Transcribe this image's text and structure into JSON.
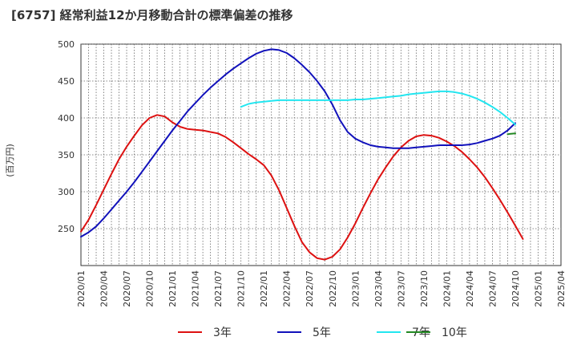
{
  "chart_data": {
    "type": "line",
    "title": "[6757]  経常利益12か月移動合計の標準偏差の推移",
    "ylabel": "(百万円)",
    "xlabel": "",
    "ylim": [
      200,
      500
    ],
    "yticks": [
      250,
      300,
      350,
      400,
      450,
      500
    ],
    "xrange": [
      "2020-01",
      "2025-04"
    ],
    "xticks": [
      "2020/01",
      "2020/04",
      "2020/07",
      "2020/10",
      "2021/01",
      "2021/04",
      "2021/07",
      "2021/10",
      "2022/01",
      "2022/04",
      "2022/07",
      "2022/10",
      "2023/01",
      "2023/04",
      "2023/07",
      "2023/10",
      "2024/01",
      "2024/04",
      "2024/07",
      "2024/10",
      "2025/01",
      "2025/04"
    ],
    "grid": true,
    "legend_position": "bottom",
    "series": [
      {
        "name": "3年",
        "color": "#dd1111",
        "points": [
          [
            "2020-01",
            246
          ],
          [
            "2020-02",
            262
          ],
          [
            "2020-03",
            282
          ],
          [
            "2020-04",
            303
          ],
          [
            "2020-05",
            324
          ],
          [
            "2020-06",
            344
          ],
          [
            "2020-07",
            361
          ],
          [
            "2020-08",
            376
          ],
          [
            "2020-09",
            390
          ],
          [
            "2020-10",
            400
          ],
          [
            "2020-11",
            404
          ],
          [
            "2020-12",
            402
          ],
          [
            "2021-01",
            394
          ],
          [
            "2021-02",
            388
          ],
          [
            "2021-03",
            385
          ],
          [
            "2021-04",
            384
          ],
          [
            "2021-05",
            383
          ],
          [
            "2021-06",
            381
          ],
          [
            "2021-07",
            379
          ],
          [
            "2021-08",
            374
          ],
          [
            "2021-09",
            367
          ],
          [
            "2021-10",
            359
          ],
          [
            "2021-11",
            351
          ],
          [
            "2021-12",
            344
          ],
          [
            "2022-01",
            336
          ],
          [
            "2022-02",
            322
          ],
          [
            "2022-03",
            302
          ],
          [
            "2022-04",
            278
          ],
          [
            "2022-05",
            254
          ],
          [
            "2022-06",
            232
          ],
          [
            "2022-07",
            218
          ],
          [
            "2022-08",
            210
          ],
          [
            "2022-09",
            208
          ],
          [
            "2022-10",
            212
          ],
          [
            "2022-11",
            222
          ],
          [
            "2022-12",
            238
          ],
          [
            "2023-01",
            257
          ],
          [
            "2023-02",
            278
          ],
          [
            "2023-03",
            298
          ],
          [
            "2023-04",
            317
          ],
          [
            "2023-05",
            333
          ],
          [
            "2023-06",
            348
          ],
          [
            "2023-07",
            360
          ],
          [
            "2023-08",
            369
          ],
          [
            "2023-09",
            375
          ],
          [
            "2023-10",
            377
          ],
          [
            "2023-11",
            376
          ],
          [
            "2023-12",
            373
          ],
          [
            "2024-01",
            368
          ],
          [
            "2024-02",
            362
          ],
          [
            "2024-03",
            354
          ],
          [
            "2024-04",
            344
          ],
          [
            "2024-05",
            333
          ],
          [
            "2024-06",
            320
          ],
          [
            "2024-07",
            305
          ],
          [
            "2024-08",
            289
          ],
          [
            "2024-09",
            272
          ],
          [
            "2024-10",
            254
          ],
          [
            "2024-11",
            236
          ]
        ]
      },
      {
        "name": "5年",
        "color": "#1111bb",
        "points": [
          [
            "2020-01",
            239
          ],
          [
            "2020-02",
            245
          ],
          [
            "2020-03",
            253
          ],
          [
            "2020-04",
            264
          ],
          [
            "2020-05",
            276
          ],
          [
            "2020-06",
            288
          ],
          [
            "2020-07",
            300
          ],
          [
            "2020-08",
            313
          ],
          [
            "2020-09",
            327
          ],
          [
            "2020-10",
            341
          ],
          [
            "2020-11",
            355
          ],
          [
            "2020-12",
            369
          ],
          [
            "2021-01",
            383
          ],
          [
            "2021-02",
            396
          ],
          [
            "2021-03",
            409
          ],
          [
            "2021-04",
            420
          ],
          [
            "2021-05",
            431
          ],
          [
            "2021-06",
            441
          ],
          [
            "2021-07",
            450
          ],
          [
            "2021-08",
            459
          ],
          [
            "2021-09",
            467
          ],
          [
            "2021-10",
            474
          ],
          [
            "2021-11",
            481
          ],
          [
            "2021-12",
            487
          ],
          [
            "2022-01",
            491
          ],
          [
            "2022-02",
            493
          ],
          [
            "2022-03",
            492
          ],
          [
            "2022-04",
            488
          ],
          [
            "2022-05",
            481
          ],
          [
            "2022-06",
            472
          ],
          [
            "2022-07",
            462
          ],
          [
            "2022-08",
            450
          ],
          [
            "2022-09",
            436
          ],
          [
            "2022-10",
            418
          ],
          [
            "2022-11",
            397
          ],
          [
            "2022-12",
            381
          ],
          [
            "2023-01",
            372
          ],
          [
            "2023-02",
            367
          ],
          [
            "2023-03",
            363
          ],
          [
            "2023-04",
            361
          ],
          [
            "2023-05",
            360
          ],
          [
            "2023-06",
            359
          ],
          [
            "2023-07",
            359
          ],
          [
            "2023-08",
            359
          ],
          [
            "2023-09",
            360
          ],
          [
            "2023-10",
            361
          ],
          [
            "2023-11",
            362
          ],
          [
            "2023-12",
            363
          ],
          [
            "2024-01",
            363
          ],
          [
            "2024-02",
            363
          ],
          [
            "2024-03",
            363
          ],
          [
            "2024-04",
            364
          ],
          [
            "2024-05",
            366
          ],
          [
            "2024-06",
            369
          ],
          [
            "2024-07",
            372
          ],
          [
            "2024-08",
            376
          ],
          [
            "2024-09",
            383
          ],
          [
            "2024-10",
            393
          ]
        ]
      },
      {
        "name": "7年",
        "color": "#22e6f0",
        "points": [
          [
            "2021-10",
            415
          ],
          [
            "2021-11",
            419
          ],
          [
            "2021-12",
            421
          ],
          [
            "2022-01",
            422
          ],
          [
            "2022-02",
            423
          ],
          [
            "2022-03",
            424
          ],
          [
            "2022-04",
            424
          ],
          [
            "2022-05",
            424
          ],
          [
            "2022-06",
            424
          ],
          [
            "2022-07",
            424
          ],
          [
            "2022-08",
            424
          ],
          [
            "2022-09",
            424
          ],
          [
            "2022-10",
            424
          ],
          [
            "2022-11",
            424
          ],
          [
            "2022-12",
            424
          ],
          [
            "2023-01",
            425
          ],
          [
            "2023-02",
            425
          ],
          [
            "2023-03",
            426
          ],
          [
            "2023-04",
            427
          ],
          [
            "2023-05",
            428
          ],
          [
            "2023-06",
            429
          ],
          [
            "2023-07",
            430
          ],
          [
            "2023-08",
            432
          ],
          [
            "2023-09",
            433
          ],
          [
            "2023-10",
            434
          ],
          [
            "2023-11",
            435
          ],
          [
            "2023-12",
            436
          ],
          [
            "2024-01",
            436
          ],
          [
            "2024-02",
            435
          ],
          [
            "2024-03",
            433
          ],
          [
            "2024-04",
            430
          ],
          [
            "2024-05",
            426
          ],
          [
            "2024-06",
            421
          ],
          [
            "2024-07",
            415
          ],
          [
            "2024-08",
            408
          ],
          [
            "2024-09",
            400
          ],
          [
            "2024-10",
            391
          ]
        ]
      },
      {
        "name": "10年",
        "color": "#228822",
        "points": [
          [
            "2024-09",
            378
          ],
          [
            "2024-10",
            379
          ]
        ]
      }
    ]
  }
}
